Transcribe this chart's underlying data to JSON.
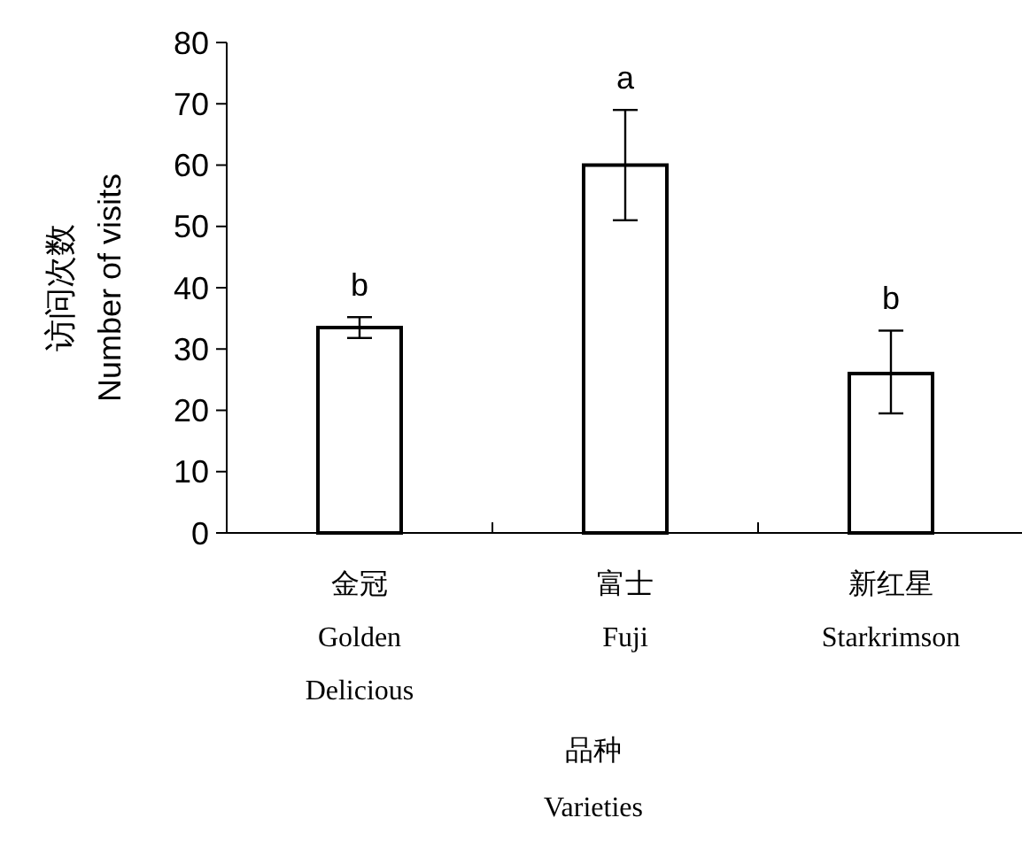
{
  "chart_data": {
    "type": "bar",
    "xlabel": "品种\nVarieties",
    "ylabel": "访问次数\nNumber of visits",
    "categories": [
      "金冠\nGolden\nDelicious",
      "富士\nFuji",
      "新红星\nStarkrimson"
    ],
    "values": [
      33.5,
      60,
      26
    ],
    "color": "#ffffff",
    "errors": [
      [
        31.8,
        35.2
      ],
      [
        51,
        69
      ],
      [
        19.5,
        33
      ]
    ],
    "ylim": [
      0,
      80
    ],
    "yticks": [
      0,
      10,
      20,
      30,
      40,
      50,
      60,
      70,
      80
    ],
    "grid": false,
    "annotations": [
      {
        "text": "b",
        "x": "金冠\nGolden\nDelicious",
        "y": 35.2
      },
      {
        "text": "a",
        "x": "富士\nFuji",
        "y": 69
      },
      {
        "text": "b",
        "x": "新红星\nStarkrimson",
        "y": 33
      }
    ]
  }
}
